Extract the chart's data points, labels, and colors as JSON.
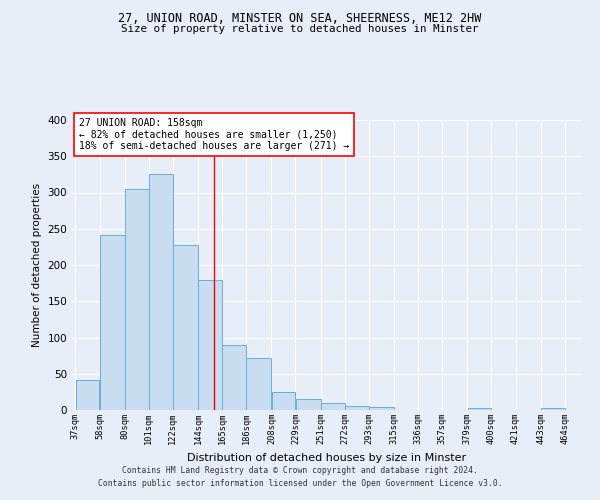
{
  "title_line1": "27, UNION ROAD, MINSTER ON SEA, SHEERNESS, ME12 2HW",
  "title_line2": "Size of property relative to detached houses in Minster",
  "xlabel": "Distribution of detached houses by size in Minster",
  "ylabel": "Number of detached properties",
  "footer_line1": "Contains HM Land Registry data © Crown copyright and database right 2024.",
  "footer_line2": "Contains public sector information licensed under the Open Government Licence v3.0.",
  "annotation_line1": "27 UNION ROAD: 158sqm",
  "annotation_line2": "← 82% of detached houses are smaller (1,250)",
  "annotation_line3": "18% of semi-detached houses are larger (271) →",
  "property_size": 158,
  "bar_left_edges": [
    37,
    58,
    80,
    101,
    122,
    144,
    165,
    186,
    208,
    229,
    251,
    272,
    293,
    315,
    336,
    357,
    379,
    400,
    421,
    443
  ],
  "bar_widths": [
    21,
    22,
    21,
    21,
    22,
    21,
    21,
    22,
    21,
    22,
    21,
    21,
    22,
    21,
    21,
    22,
    21,
    21,
    22,
    21
  ],
  "bar_heights": [
    42,
    241,
    305,
    325,
    228,
    180,
    89,
    72,
    25,
    15,
    9,
    5,
    4,
    0,
    0,
    0,
    3,
    0,
    0,
    3
  ],
  "bar_color": "#c8ddf0",
  "bar_edgecolor": "#6aaed6",
  "vline_x": 158,
  "vline_color": "red",
  "ylim": [
    0,
    400
  ],
  "yticks": [
    0,
    50,
    100,
    150,
    200,
    250,
    300,
    350,
    400
  ],
  "bg_color": "#e8eef8",
  "grid_color": "#ffffff",
  "annotation_box_edgecolor": "red",
  "annotation_box_facecolor": "#ffffff",
  "x_tick_labels": [
    "37sqm",
    "58sqm",
    "80sqm",
    "101sqm",
    "122sqm",
    "144sqm",
    "165sqm",
    "186sqm",
    "208sqm",
    "229sqm",
    "251sqm",
    "272sqm",
    "293sqm",
    "315sqm",
    "336sqm",
    "357sqm",
    "379sqm",
    "400sqm",
    "421sqm",
    "443sqm",
    "464sqm"
  ]
}
